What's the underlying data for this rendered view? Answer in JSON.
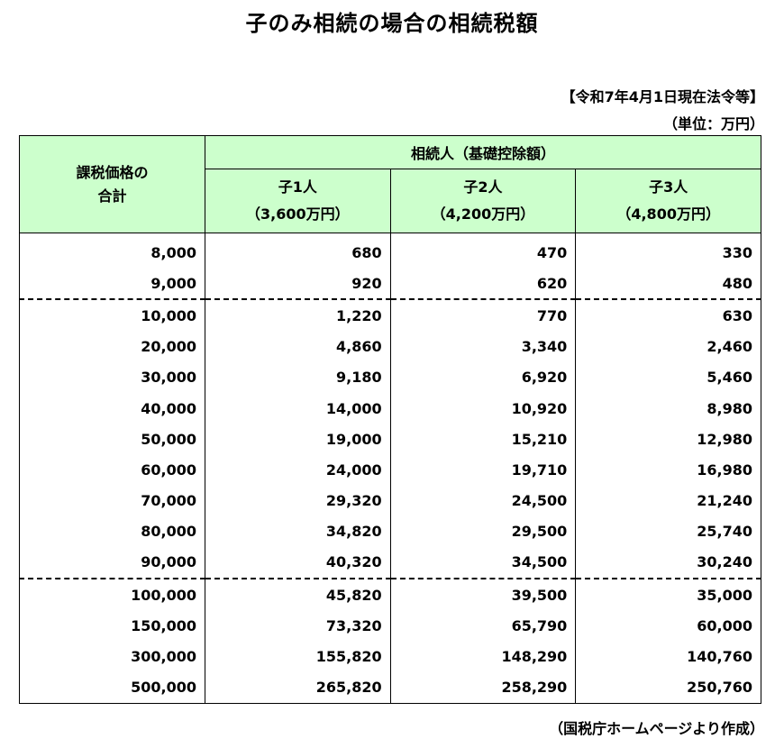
{
  "title": "子のみ相続の場合の相続税額",
  "as_of": "【令和7年4月1日現在法令等】",
  "unit": "（単位：万円）",
  "source": "（国税庁ホームページより作成）",
  "table": {
    "corner_line1": "課税価格の",
    "corner_line2": "合計",
    "group_header": "相続人（基礎控除額）",
    "columns": [
      {
        "name": "子1人",
        "deduction": "（3,600万円）"
      },
      {
        "name": "子2人",
        "deduction": "（4,200万円）"
      },
      {
        "name": "子3人",
        "deduction": "（4,800万円）"
      }
    ],
    "rows": [
      [
        "8,000",
        "680",
        "470",
        "330"
      ],
      [
        "9,000",
        "920",
        "620",
        "480"
      ],
      [
        "10,000",
        "1,220",
        "770",
        "630"
      ],
      [
        "20,000",
        "4,860",
        "3,340",
        "2,460"
      ],
      [
        "30,000",
        "9,180",
        "6,920",
        "5,460"
      ],
      [
        "40,000",
        "14,000",
        "10,920",
        "8,980"
      ],
      [
        "50,000",
        "19,000",
        "15,210",
        "12,980"
      ],
      [
        "60,000",
        "24,000",
        "19,710",
        "16,980"
      ],
      [
        "70,000",
        "29,320",
        "24,500",
        "21,240"
      ],
      [
        "80,000",
        "34,820",
        "29,500",
        "25,740"
      ],
      [
        "90,000",
        "40,320",
        "34,500",
        "30,240"
      ],
      [
        "100,000",
        "45,820",
        "39,500",
        "35,000"
      ],
      [
        "150,000",
        "73,320",
        "65,790",
        "60,000"
      ],
      [
        "300,000",
        "155,820",
        "148,290",
        "140,760"
      ],
      [
        "500,000",
        "265,820",
        "258,290",
        "250,760"
      ]
    ]
  }
}
